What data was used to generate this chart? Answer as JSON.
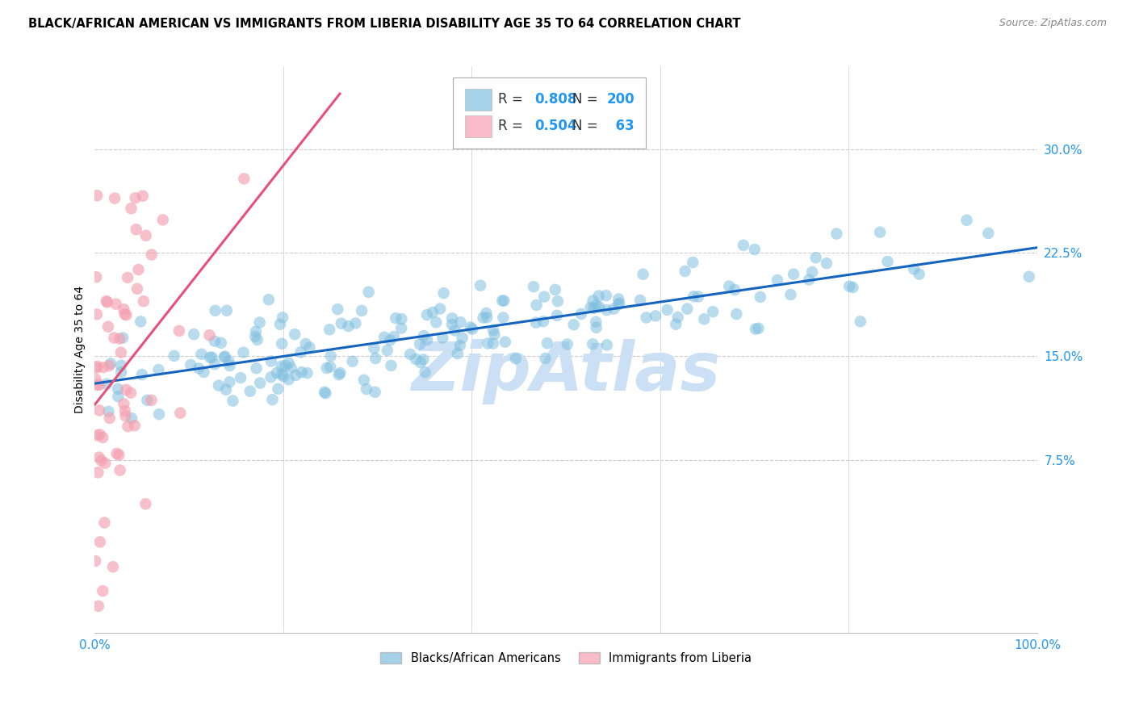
{
  "title": "BLACK/AFRICAN AMERICAN VS IMMIGRANTS FROM LIBERIA DISABILITY AGE 35 TO 64 CORRELATION CHART",
  "source": "Source: ZipAtlas.com",
  "ylabel": "Disability Age 35 to 64",
  "blue_R": 0.808,
  "blue_N": 200,
  "pink_R": 0.504,
  "pink_N": 63,
  "xlim": [
    0.0,
    1.0
  ],
  "ylim": [
    -0.05,
    0.36
  ],
  "yticks": [
    0.075,
    0.15,
    0.225,
    0.3
  ],
  "yticklabels": [
    "7.5%",
    "15.0%",
    "22.5%",
    "30.0%"
  ],
  "xtick_positions": [
    0.0,
    0.2,
    0.4,
    0.6,
    0.8,
    1.0
  ],
  "xticklabels": [
    "0.0%",
    "",
    "",
    "",
    "",
    "100.0%"
  ],
  "blue_color": "#7fbfdf",
  "pink_color": "#f4a0b0",
  "blue_line_color": "#1565c0",
  "pink_line_color": "#e8507a",
  "watermark_text": "ZipAtlas",
  "watermark_color": "#cce0f5",
  "legend_label_blue": "Blacks/African Americans",
  "legend_label_pink": "Immigrants from Liberia",
  "blue_seed": 42,
  "pink_seed": 99
}
